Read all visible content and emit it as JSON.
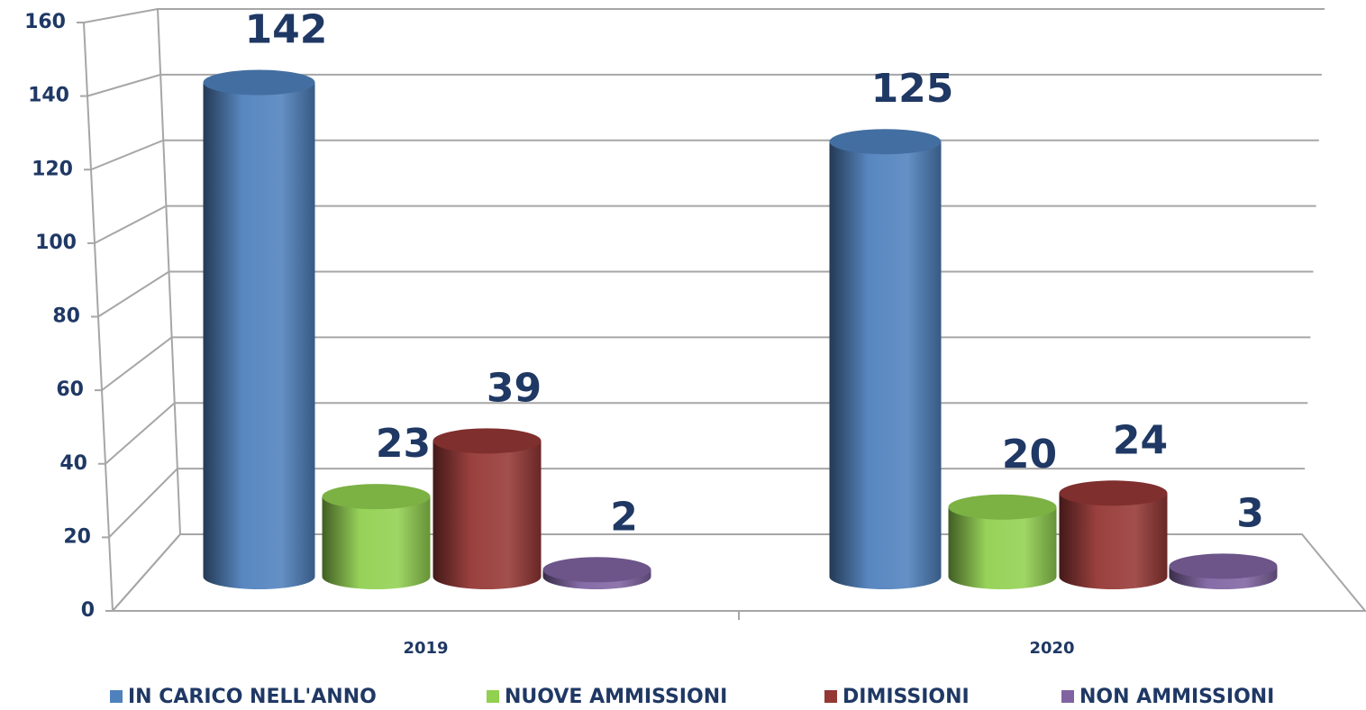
{
  "chart_data": {
    "type": "bar3d",
    "categories": [
      "2019",
      "2020"
    ],
    "series": [
      {
        "name": "IN CARICO NELL'ANNO",
        "color": "#4f81bd",
        "values": [
          142,
          125
        ]
      },
      {
        "name": "NUOVE AMMISSIONI",
        "color": "#92d050",
        "values": [
          23,
          20
        ]
      },
      {
        "name": "DIMISSIONI",
        "color": "#953735",
        "values": [
          39,
          24
        ]
      },
      {
        "name": "NON AMMISSIONI",
        "color": "#8064a2",
        "values": [
          2,
          3
        ]
      }
    ],
    "ylim": [
      0,
      160
    ],
    "yticks": [
      0,
      20,
      40,
      60,
      80,
      100,
      120,
      140,
      160
    ],
    "grid": true,
    "legend": "bottom"
  }
}
